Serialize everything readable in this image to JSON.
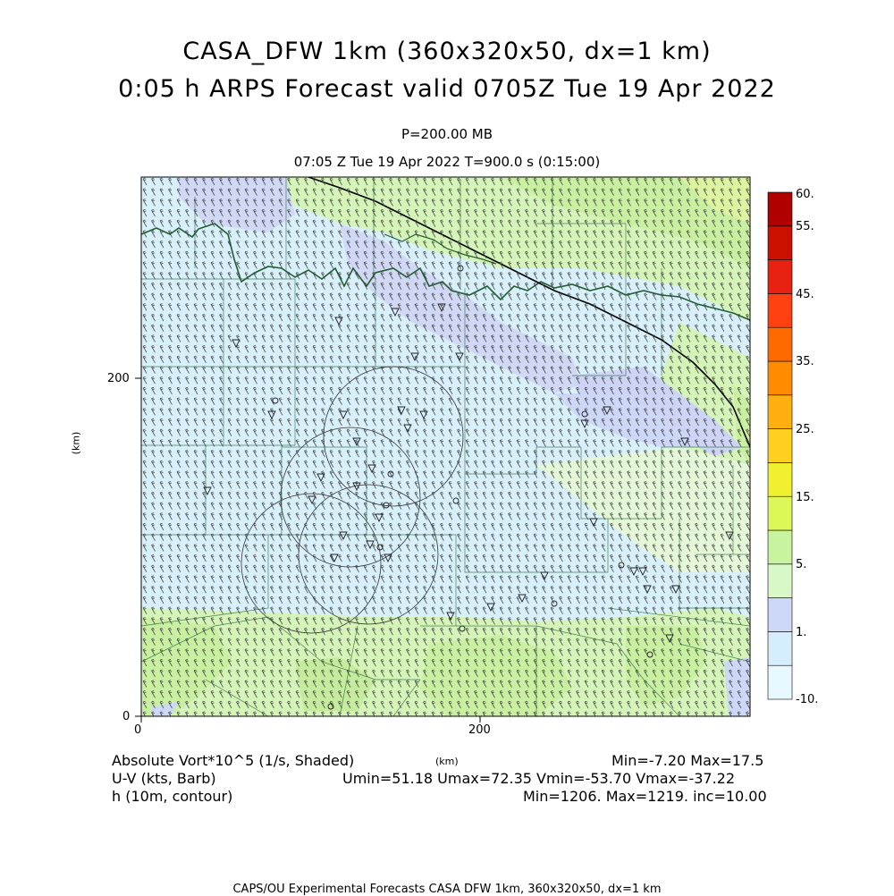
{
  "header": {
    "title_line1": "CASA_DFW 1km (360x320x50, dx=1 km)",
    "title_line2": "0:05 h ARPS Forecast valid 0705Z Tue 19 Apr 2022",
    "pressure_level": "P=200.00 MB",
    "valid_time": "07:05 Z Tue 19 Apr 2022    T=900.0 s (0:15:00)"
  },
  "axes": {
    "x_ticks": [
      "0",
      "200"
    ],
    "y_ticks": [
      "0",
      "200"
    ],
    "x_unit": "(km)",
    "y_unit": "(km)"
  },
  "colorbar": {
    "labels": [
      "60.",
      "55.",
      "45.",
      "35.",
      "25.",
      "15.",
      "5.",
      "1.",
      "-10."
    ],
    "colors": [
      "#e8f8ff",
      "#d6ecff",
      "#cdd8f8",
      "#d8f8c8",
      "#c8f4a0",
      "#dcf858",
      "#f0f030",
      "#ffd020",
      "#ffb010",
      "#ff8c00",
      "#ff6a00",
      "#ff4010",
      "#e82010",
      "#cc1000",
      "#b00000"
    ]
  },
  "legend": {
    "field1_name": "Absolute Vort*10^5 (1/s, Shaded)",
    "field1_stats": "Min=-7.20 Max=17.5",
    "field2_name": "U-V (kts, Barb)",
    "field2_stats": "Umin=51.18 Umax=72.35 Vmin=-53.70 Vmax=-37.22",
    "field3_name": "h (10m, contour)",
    "field3_stats": "Min=1206. Max=1219. inc=10.00",
    "x_unit_center": "(km)"
  },
  "footer": {
    "credit": "CAPS/OU Experimental Forecasts  CASA DFW 1km, 360x320x50, dx=1 km"
  }
}
